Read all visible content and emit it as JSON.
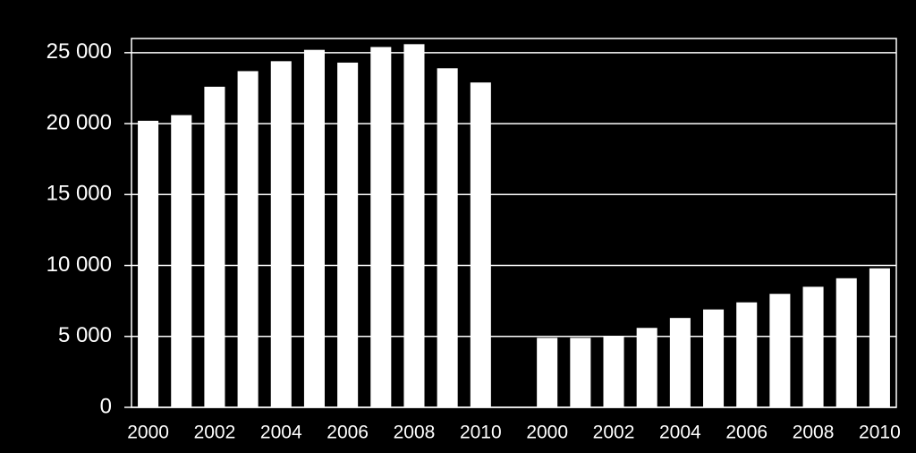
{
  "chart_data": {
    "type": "bar",
    "categories": [
      "2000",
      null,
      "2002",
      null,
      "2004",
      null,
      "2006",
      null,
      "2008",
      null,
      "2010",
      null,
      "2000",
      null,
      "2002",
      null,
      "2004",
      null,
      "2006",
      null,
      "2008",
      null,
      "2010"
    ],
    "values": [
      20200,
      20600,
      22600,
      23700,
      24400,
      25200,
      24300,
      25400,
      25600,
      23900,
      22900,
      null,
      4900,
      4900,
      5000,
      5600,
      6300,
      6900,
      7400,
      8000,
      8500,
      9100,
      9800
    ],
    "color": "#ffffff",
    "ylim": [
      0,
      26000
    ],
    "yticks": [
      0,
      {
        "value": 5000,
        "label": "5 000"
      },
      {
        "value": 10000,
        "label": "10 000"
      },
      {
        "value": 15000,
        "label": "15 000"
      },
      {
        "value": 20000,
        "label": "20 000"
      },
      {
        "value": 25000,
        "label": "25 000"
      }
    ],
    "grid": true
  }
}
